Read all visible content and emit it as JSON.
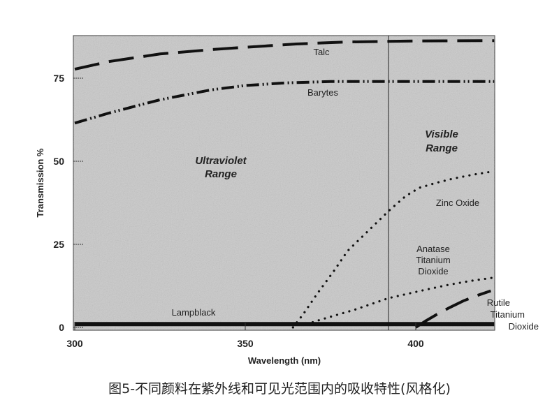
{
  "chart_data": {
    "type": "line",
    "xlabel": "Wavelength (nm)",
    "ylabel": "Transmission %",
    "xlim": [
      300,
      423
    ],
    "ylim": [
      0,
      88
    ],
    "xticks": [
      300,
      350,
      400
    ],
    "yticks": [
      0,
      25,
      50,
      75
    ],
    "divider_x": 392,
    "grid": false,
    "series": [
      {
        "name": "Talc",
        "style": "dashed",
        "x": [
          300,
          310,
          325,
          340,
          350,
          365,
          380,
          400,
          423
        ],
        "y": [
          77.7,
          80,
          82.3,
          83.6,
          84.3,
          85.3,
          85.9,
          86.2,
          86.3
        ]
      },
      {
        "name": "Barytes",
        "style": "dash-dot-dot",
        "x": [
          300,
          310,
          325,
          340,
          350,
          362,
          375,
          390,
          400,
          423
        ],
        "y": [
          61.5,
          64.5,
          68.5,
          71.5,
          72.8,
          73.6,
          74,
          74,
          74,
          74
        ]
      },
      {
        "name": "Zinc Oxide",
        "style": "dotted",
        "x": [
          364,
          367,
          371,
          376,
          380,
          386,
          392,
          397,
          401,
          406,
          411,
          417,
          423
        ],
        "y": [
          0,
          4,
          10,
          17,
          23,
          29,
          35,
          39.5,
          42,
          43.5,
          44.8,
          46,
          47
        ]
      },
      {
        "name": "Anatase Titanium Dioxide",
        "style": "dotted",
        "x": [
          368,
          372,
          376,
          382,
          388,
          392,
          398,
          404,
          410,
          416,
          423
        ],
        "y": [
          1,
          2.3,
          3.5,
          5.3,
          7.4,
          8.8,
          10.2,
          11.6,
          12.9,
          14,
          15
        ]
      },
      {
        "name": "Rutile Titanium Dioxide",
        "style": "dashed",
        "x": [
          400,
          403,
          406,
          410,
          414,
          418,
          422
        ],
        "y": [
          0,
          2,
          3.8,
          6,
          8,
          9.6,
          11
        ]
      },
      {
        "name": "Lampblack",
        "style": "solid",
        "x": [
          300,
          423
        ],
        "y": [
          1,
          1
        ]
      }
    ],
    "annotations": {
      "talc": "Talc",
      "barytes": "Barytes",
      "uv_1": "Ultraviolet",
      "uv_2": "Range",
      "vis_1": "Visible",
      "vis_2": "Range",
      "zinc": "Zinc Oxide",
      "anatase_1": "Anatase",
      "anatase_2": "Titanium",
      "anatase_3": "Dioxide",
      "lampblack": "Lampblack",
      "rutile_1": "Rutile",
      "rutile_2": "Titanium",
      "rutile_3": "Dioxide"
    },
    "colors": {
      "background": "#c9c9c9",
      "ink": "#111111"
    }
  },
  "caption": "图5-不同颜料在紫外线和可见光范围内的吸收特性(风格化)"
}
